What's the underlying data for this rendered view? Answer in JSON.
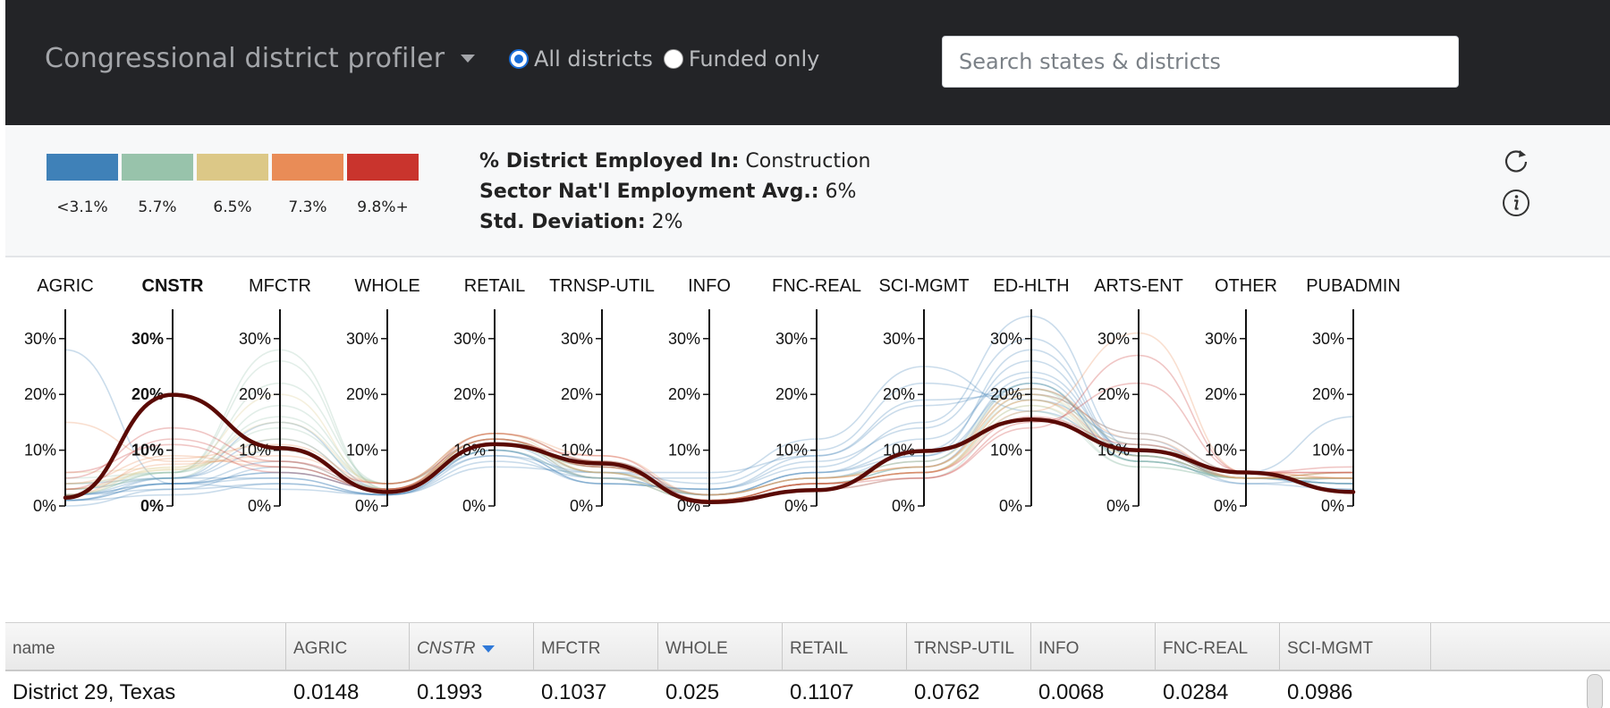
{
  "header": {
    "title": "Congressional district profiler",
    "radios": [
      {
        "label": "All districts",
        "checked": true
      },
      {
        "label": "Funded only",
        "checked": false
      }
    ],
    "search_placeholder": "Search states & districts"
  },
  "legend": {
    "colors": [
      "#3f81b8",
      "#98c3ab",
      "#dcc887",
      "#e98c57",
      "#c9342d"
    ],
    "labels": [
      "<3.1%",
      "5.7%",
      "6.5%",
      "7.3%",
      "9.8%+"
    ]
  },
  "stats": {
    "employed_label": "% District Employed In:",
    "employed_value": "Construction",
    "avg_label": "Sector Nat'l Employment Avg.:",
    "avg_value": "6%",
    "std_label": "Std. Deviation:",
    "std_value": "2%"
  },
  "icons": {
    "refresh": "refresh-icon",
    "info": "info-icon"
  },
  "chart_data": {
    "type": "parallel-coordinates",
    "axes": [
      "AGRIC",
      "CNSTR",
      "MFCTR",
      "WHOLE",
      "RETAIL",
      "TRNSP-UTIL",
      "INFO",
      "FNC-REAL",
      "SCI-MGMT",
      "ED-HLTH",
      "ARTS-ENT",
      "OTHER",
      "PUBADMIN"
    ],
    "selected_axis": "CNSTR",
    "tick_values": [
      0,
      10,
      20,
      30
    ],
    "tick_labels": [
      "0%",
      "10%",
      "20%",
      "30%"
    ],
    "ylim": [
      0,
      0.35
    ],
    "highlight": {
      "name": "District 29, Texas",
      "color": "#5a0a05",
      "values": [
        0.0148,
        0.1993,
        0.1037,
        0.025,
        0.1107,
        0.0762,
        0.0068,
        0.0284,
        0.0986,
        0.155,
        0.1,
        0.06,
        0.025
      ]
    },
    "background_profiles": [
      {
        "values": [
          0.02,
          0.04,
          0.06,
          0.03,
          0.11,
          0.05,
          0.02,
          0.06,
          0.12,
          0.24,
          0.1,
          0.05,
          0.04
        ],
        "group": 0
      },
      {
        "values": [
          0.01,
          0.05,
          0.05,
          0.02,
          0.1,
          0.04,
          0.03,
          0.09,
          0.18,
          0.21,
          0.11,
          0.05,
          0.05
        ],
        "group": 0
      },
      {
        "values": [
          0.0,
          0.03,
          0.04,
          0.02,
          0.09,
          0.06,
          0.04,
          0.1,
          0.22,
          0.19,
          0.12,
          0.04,
          0.03
        ],
        "group": 0
      },
      {
        "values": [
          0.03,
          0.05,
          0.12,
          0.03,
          0.12,
          0.06,
          0.02,
          0.05,
          0.08,
          0.23,
          0.09,
          0.05,
          0.05
        ],
        "group": 0
      },
      {
        "values": [
          0.02,
          0.04,
          0.08,
          0.03,
          0.11,
          0.08,
          0.02,
          0.06,
          0.1,
          0.26,
          0.09,
          0.05,
          0.04
        ],
        "group": 0
      },
      {
        "values": [
          0.01,
          0.04,
          0.03,
          0.02,
          0.08,
          0.05,
          0.05,
          0.12,
          0.25,
          0.17,
          0.1,
          0.05,
          0.04
        ],
        "group": 0
      },
      {
        "values": [
          0.04,
          0.05,
          0.15,
          0.03,
          0.12,
          0.05,
          0.01,
          0.04,
          0.07,
          0.22,
          0.08,
          0.05,
          0.06
        ],
        "group": 0
      },
      {
        "values": [
          0.02,
          0.05,
          0.1,
          0.03,
          0.11,
          0.07,
          0.02,
          0.06,
          0.09,
          0.28,
          0.09,
          0.04,
          0.05
        ],
        "group": 0
      },
      {
        "values": [
          0.01,
          0.04,
          0.05,
          0.02,
          0.1,
          0.04,
          0.03,
          0.08,
          0.14,
          0.3,
          0.09,
          0.05,
          0.03
        ],
        "group": 0
      },
      {
        "values": [
          0.28,
          0.04,
          0.06,
          0.03,
          0.1,
          0.05,
          0.02,
          0.05,
          0.09,
          0.22,
          0.08,
          0.05,
          0.05
        ],
        "group": 0
      },
      {
        "values": [
          0.02,
          0.03,
          0.07,
          0.03,
          0.09,
          0.04,
          0.03,
          0.07,
          0.15,
          0.34,
          0.1,
          0.05,
          0.04
        ],
        "group": 0
      },
      {
        "values": [
          0.01,
          0.02,
          0.04,
          0.02,
          0.07,
          0.06,
          0.06,
          0.09,
          0.19,
          0.2,
          0.13,
          0.06,
          0.16
        ],
        "group": 0
      },
      {
        "values": [
          0.03,
          0.05,
          0.18,
          0.04,
          0.12,
          0.06,
          0.01,
          0.04,
          0.06,
          0.2,
          0.08,
          0.05,
          0.05
        ],
        "group": 1
      },
      {
        "values": [
          0.02,
          0.06,
          0.22,
          0.04,
          0.12,
          0.07,
          0.01,
          0.04,
          0.07,
          0.19,
          0.08,
          0.05,
          0.04
        ],
        "group": 1
      },
      {
        "values": [
          0.04,
          0.06,
          0.26,
          0.03,
          0.11,
          0.06,
          0.01,
          0.04,
          0.06,
          0.18,
          0.07,
          0.05,
          0.05
        ],
        "group": 1
      },
      {
        "values": [
          0.03,
          0.06,
          0.16,
          0.04,
          0.13,
          0.08,
          0.01,
          0.04,
          0.07,
          0.21,
          0.08,
          0.05,
          0.05
        ],
        "group": 1
      },
      {
        "values": [
          0.05,
          0.06,
          0.28,
          0.03,
          0.1,
          0.05,
          0.01,
          0.03,
          0.05,
          0.17,
          0.07,
          0.05,
          0.05
        ],
        "group": 1
      },
      {
        "values": [
          0.02,
          0.06,
          0.14,
          0.04,
          0.11,
          0.07,
          0.02,
          0.05,
          0.08,
          0.22,
          0.09,
          0.05,
          0.05
        ],
        "group": 1
      },
      {
        "values": [
          0.03,
          0.065,
          0.12,
          0.03,
          0.12,
          0.06,
          0.02,
          0.05,
          0.07,
          0.2,
          0.1,
          0.05,
          0.06
        ],
        "group": 2
      },
      {
        "values": [
          0.04,
          0.065,
          0.15,
          0.04,
          0.11,
          0.07,
          0.01,
          0.04,
          0.06,
          0.19,
          0.09,
          0.05,
          0.06
        ],
        "group": 2
      },
      {
        "values": [
          0.02,
          0.07,
          0.1,
          0.03,
          0.13,
          0.06,
          0.02,
          0.05,
          0.08,
          0.21,
          0.11,
          0.05,
          0.05
        ],
        "group": 2
      },
      {
        "values": [
          0.06,
          0.068,
          0.2,
          0.03,
          0.12,
          0.05,
          0.01,
          0.04,
          0.06,
          0.18,
          0.09,
          0.05,
          0.05
        ],
        "group": 2
      },
      {
        "values": [
          0.03,
          0.075,
          0.09,
          0.04,
          0.13,
          0.08,
          0.02,
          0.05,
          0.07,
          0.2,
          0.13,
          0.06,
          0.05
        ],
        "group": 3
      },
      {
        "values": [
          0.15,
          0.08,
          0.08,
          0.03,
          0.12,
          0.07,
          0.01,
          0.04,
          0.06,
          0.19,
          0.1,
          0.05,
          0.06
        ],
        "group": 3
      },
      {
        "values": [
          0.02,
          0.085,
          0.11,
          0.04,
          0.13,
          0.09,
          0.02,
          0.05,
          0.07,
          0.21,
          0.12,
          0.05,
          0.05
        ],
        "group": 3
      },
      {
        "values": [
          0.04,
          0.09,
          0.07,
          0.03,
          0.12,
          0.06,
          0.01,
          0.04,
          0.06,
          0.17,
          0.31,
          0.06,
          0.05
        ],
        "group": 3
      },
      {
        "values": [
          0.03,
          0.12,
          0.07,
          0.03,
          0.13,
          0.08,
          0.01,
          0.04,
          0.06,
          0.16,
          0.11,
          0.06,
          0.06
        ],
        "group": 4
      },
      {
        "values": [
          0.05,
          0.14,
          0.08,
          0.04,
          0.12,
          0.07,
          0.01,
          0.04,
          0.05,
          0.15,
          0.22,
          0.06,
          0.06
        ],
        "group": 4
      },
      {
        "values": [
          0.06,
          0.11,
          0.06,
          0.03,
          0.11,
          0.09,
          0.01,
          0.03,
          0.05,
          0.14,
          0.27,
          0.06,
          0.07
        ],
        "group": 4
      }
    ]
  },
  "table": {
    "columns": [
      "name",
      "AGRIC",
      "CNSTR",
      "MFCTR",
      "WHOLE",
      "RETAIL",
      "TRNSP-UTIL",
      "INFO",
      "FNC-REAL",
      "SCI-MGMT"
    ],
    "sorted_column": 2,
    "rows": [
      [
        "District 29, Texas",
        "0.0148",
        "0.1993",
        "0.1037",
        "0.025",
        "0.1107",
        "0.0762",
        "0.0068",
        "0.0284",
        "0.0986"
      ]
    ]
  }
}
